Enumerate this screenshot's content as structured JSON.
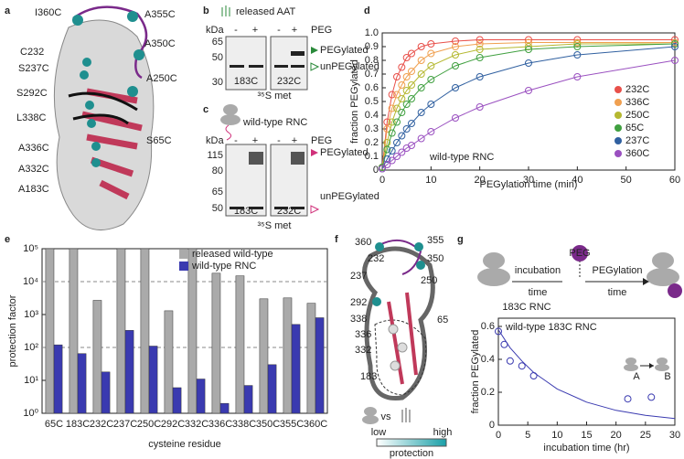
{
  "figure": {
    "panel_letters": [
      "a",
      "b",
      "c",
      "d",
      "e",
      "f",
      "g"
    ],
    "panel_a": {
      "residues": [
        "I360C",
        "A355C",
        "A350C",
        "C232",
        "S237C",
        "A250C",
        "S292C",
        "L338C",
        "S65C",
        "A336C",
        "A332C",
        "A183C"
      ]
    },
    "panel_b": {
      "title": "released AAT",
      "kda": "kDa",
      "lane_minus": "-",
      "lane_plus": "+",
      "peg": "PEG",
      "markers": [
        "65",
        "50",
        "30"
      ],
      "samples": [
        "183C",
        "232C"
      ],
      "upper_band": "PEGylated",
      "lower_band": "unPEGylated",
      "label": "³⁵S met"
    },
    "panel_c": {
      "title": "wild-type RNC",
      "kda": "kDa",
      "lane_minus": "-",
      "lane_plus": "+",
      "peg": "PEG",
      "markers": [
        "115",
        "80",
        "65",
        "50"
      ],
      "samples": [
        "183C",
        "232C"
      ],
      "upper_band": "PEGylated",
      "lower_band": "unPEGylated",
      "label": "³⁵S met"
    },
    "panel_f": {
      "residues": [
        "360",
        "355",
        "232",
        "350",
        "237",
        "250",
        "292",
        "338",
        "336",
        "65",
        "332",
        "183"
      ],
      "vs": "vs",
      "low": "low",
      "high": "high",
      "scale": "protection"
    },
    "panel_g": {
      "step_1": "incubation",
      "step_1_unit": "time",
      "peg": "PEG",
      "step_2": "PEGylation",
      "step_2_unit": "time",
      "construct": "183C RNC",
      "state_a": "A",
      "state_b": "B"
    }
  },
  "chart_data": [
    {
      "type": "scatter",
      "xlabel": "PEGylation time (min)",
      "ylabel": "fraction PEGylated",
      "annotation": "wild-type RNC",
      "x": [
        0,
        1,
        2,
        3,
        4,
        5,
        6,
        8,
        10,
        15,
        20,
        30,
        40,
        60
      ],
      "series": [
        {
          "name": "232C",
          "color": "#e8504a",
          "values": [
            0.02,
            0.35,
            0.55,
            0.68,
            0.75,
            0.82,
            0.85,
            0.9,
            0.92,
            0.94,
            0.95,
            0.95,
            0.95,
            0.95
          ]
        },
        {
          "name": "336C",
          "color": "#f0a050",
          "values": [
            0.02,
            0.3,
            0.45,
            0.55,
            0.62,
            0.68,
            0.72,
            0.8,
            0.85,
            0.9,
            0.92,
            0.93,
            0.93,
            0.93
          ]
        },
        {
          "name": "250C",
          "color": "#b5b830",
          "values": [
            0.02,
            0.2,
            0.35,
            0.45,
            0.52,
            0.58,
            0.62,
            0.7,
            0.76,
            0.84,
            0.88,
            0.9,
            0.92,
            0.92
          ]
        },
        {
          "name": "65C",
          "color": "#40a040",
          "values": [
            0.02,
            0.15,
            0.27,
            0.35,
            0.42,
            0.48,
            0.52,
            0.6,
            0.66,
            0.76,
            0.82,
            0.88,
            0.9,
            0.92
          ]
        },
        {
          "name": "237C",
          "color": "#3060a0",
          "values": [
            0.01,
            0.08,
            0.14,
            0.2,
            0.25,
            0.3,
            0.34,
            0.42,
            0.48,
            0.6,
            0.68,
            0.78,
            0.84,
            0.9
          ]
        },
        {
          "name": "360C",
          "color": "#9a50c0",
          "values": [
            0.01,
            0.04,
            0.07,
            0.1,
            0.13,
            0.16,
            0.18,
            0.23,
            0.28,
            0.38,
            0.46,
            0.58,
            0.68,
            0.8
          ]
        }
      ],
      "xlim": [
        0,
        60
      ],
      "ylim": [
        0,
        1
      ],
      "xticks": [
        0,
        10,
        20,
        30,
        40,
        50,
        60
      ],
      "yticks": [
        0,
        0.1,
        0.2,
        0.3,
        0.4,
        0.5,
        0.6,
        0.7,
        0.8,
        0.9,
        {
          "value": 1,
          "label": "1.0"
        }
      ],
      "marker": "open-circle",
      "line": true,
      "legend": "right"
    },
    {
      "type": "bar",
      "xlabel": "cysteine residue",
      "ylabel": "protection factor",
      "categories": [
        "65C",
        "183C",
        "232C",
        "237C",
        "250C",
        "292C",
        "332C",
        "336C",
        "338C",
        "350C",
        "355C",
        "360C"
      ],
      "series": [
        {
          "name": "released wild-type",
          "color": "#aaaaaa",
          "values": [
            100000,
            100000,
            2700,
            100000,
            100000,
            1300,
            100000,
            18000,
            15000,
            3000,
            3200,
            2200
          ]
        },
        {
          "name": "wild-type RNC",
          "color": "#3a3ab0",
          "values": [
            120,
            65,
            18,
            330,
            110,
            6,
            11,
            2,
            7,
            30,
            500,
            800
          ]
        }
      ],
      "log_scale": true,
      "ylim": [
        1,
        100000
      ],
      "yticks": [
        {
          "value": 1,
          "label": "10⁰"
        },
        {
          "value": 10,
          "label": "10¹"
        },
        {
          "value": 100,
          "label": "10²"
        },
        {
          "value": 1000,
          "label": "10³"
        },
        {
          "value": 10000,
          "label": "10⁴"
        },
        {
          "value": 100000,
          "label": "10⁵"
        }
      ],
      "reference_lines": [
        100,
        10000
      ],
      "legend": "top-right"
    },
    {
      "type": "scatter",
      "xlabel": "incubation time (hr)",
      "ylabel": "fraction PEGylated",
      "annotation": "wild-type 183C RNC",
      "series": [
        {
          "color": "#3a3ab0",
          "x": [
            0,
            1,
            2,
            4,
            6,
            22,
            26
          ],
          "values": [
            0.57,
            0.49,
            0.39,
            0.36,
            0.3,
            0.16,
            0.17
          ],
          "marker": "open-circle",
          "line": false
        },
        {
          "color": "#3a3ab0",
          "x": [
            0,
            2,
            4,
            6,
            8,
            10,
            15,
            20,
            25,
            30
          ],
          "values": [
            0.58,
            0.47,
            0.39,
            0.32,
            0.27,
            0.22,
            0.14,
            0.09,
            0.06,
            0.04
          ],
          "marker": "none",
          "line": true
        }
      ],
      "xlim": [
        0,
        30
      ],
      "ylim": [
        0,
        0.65
      ],
      "xticks": [
        0,
        5,
        10,
        15,
        20,
        25,
        30
      ],
      "yticks": [
        0,
        0.2,
        0.4,
        0.6
      ]
    }
  ]
}
